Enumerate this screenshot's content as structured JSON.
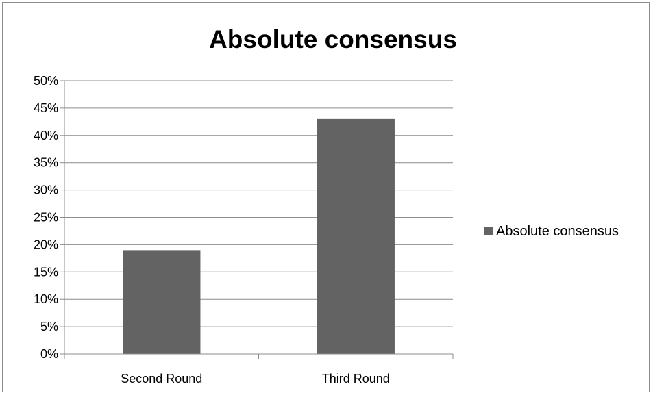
{
  "chart_data": {
    "type": "bar",
    "title": "Absolute consensus",
    "categories": [
      "Second Round",
      "Third Round"
    ],
    "series": [
      {
        "name": "Absolute consensus",
        "values": [
          19,
          43
        ],
        "color": "#636363"
      }
    ],
    "ylim": [
      0,
      50
    ],
    "ytick_step": 5,
    "ytick_format": "percent",
    "grid": true,
    "legend": "right"
  }
}
